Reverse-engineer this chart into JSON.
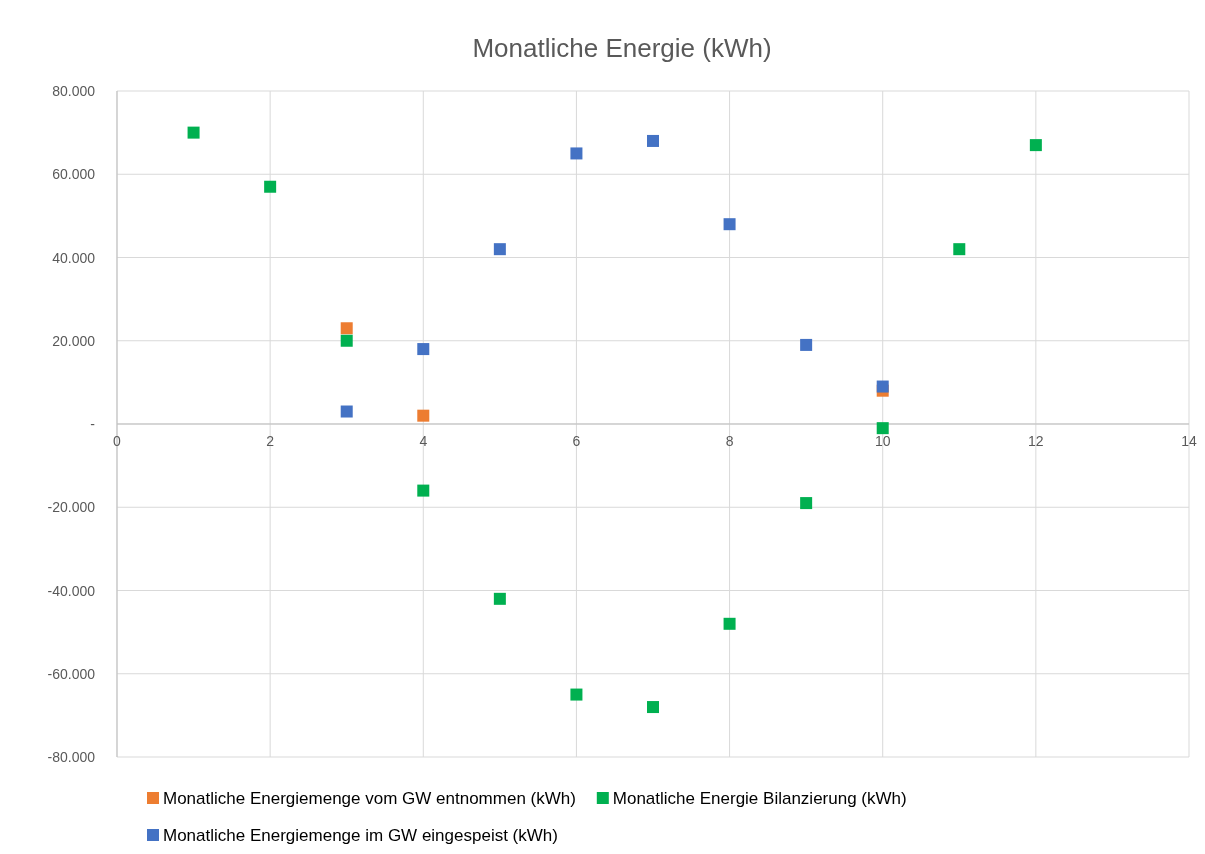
{
  "chart_data": {
    "type": "scatter",
    "title": "Monatliche Energie (kWh)",
    "xlim": [
      0,
      14
    ],
    "xticks": [
      0,
      2,
      4,
      6,
      8,
      10,
      12,
      14
    ],
    "ylim": [
      -80000,
      80000
    ],
    "yticks": [
      {
        "value": -80000,
        "label": "-80.000"
      },
      {
        "value": -60000,
        "label": "-60.000"
      },
      {
        "value": -40000,
        "label": "-40.000"
      },
      {
        "value": -20000,
        "label": "-20.000"
      },
      {
        "value": 0,
        "label": "-"
      },
      {
        "value": 20000,
        "label": "20.000"
      },
      {
        "value": 40000,
        "label": "40.000"
      },
      {
        "value": 60000,
        "label": "60.000"
      },
      {
        "value": 80000,
        "label": "80.000"
      }
    ],
    "grid": true,
    "legend": "bottom",
    "marker": "square",
    "series": [
      {
        "name": "Monatliche Energiemenge vom GW entnommen (kWh)",
        "color": "#ed7d31",
        "x": [
          3,
          4,
          10
        ],
        "values": [
          23000,
          2000,
          8000
        ]
      },
      {
        "name": "Monatliche Energie Bilanzierung (kWh)",
        "color": "#00b050",
        "x": [
          1,
          2,
          3,
          4,
          5,
          6,
          7,
          8,
          9,
          10,
          11,
          12
        ],
        "values": [
          70000,
          57000,
          20000,
          -16000,
          -42000,
          -65000,
          -68000,
          -48000,
          -19000,
          -1000,
          42000,
          67000
        ]
      },
      {
        "name": "Monatliche Energiemenge im GW eingespeist (kWh)",
        "color": "#4472c4",
        "x": [
          3,
          4,
          5,
          6,
          7,
          8,
          9,
          10
        ],
        "values": [
          3000,
          18000,
          42000,
          65000,
          68000,
          48000,
          19000,
          9000
        ]
      }
    ]
  }
}
